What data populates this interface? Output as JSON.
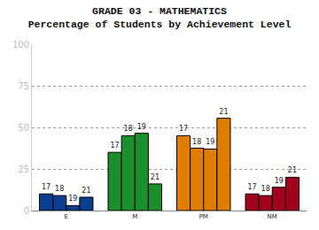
{
  "chart_data": {
    "type": "bar",
    "title": "GRADE 03 - MATHEMATICS",
    "subtitle": "Percentage of Students by Achievement Level",
    "categories": [
      "E",
      "M",
      "PM",
      "NM"
    ],
    "series": [
      {
        "name": "17",
        "values": [
          10,
          35,
          45,
          10
        ],
        "colors": [
          "#0b3e8e",
          "#1a8f2c",
          "#df7d00",
          "#a3001e"
        ]
      },
      {
        "name": "18",
        "values": [
          9,
          45,
          37.5,
          9
        ],
        "colors": [
          "#0b3e8e",
          "#1a8f2c",
          "#df7d00",
          "#a3001e"
        ]
      },
      {
        "name": "19",
        "values": [
          3,
          46.5,
          37,
          14
        ],
        "colors": [
          "#0b3e8e",
          "#1a8f2c",
          "#df7d00",
          "#a3001e"
        ]
      },
      {
        "name": "21",
        "values": [
          8,
          16,
          55.5,
          20
        ],
        "colors": [
          "#0b3e8e",
          "#1a8f2c",
          "#df7d00",
          "#a3001e"
        ]
      }
    ],
    "ylim": [
      0,
      100
    ],
    "yticks": [
      0,
      25,
      50,
      75,
      100
    ],
    "grid": true
  }
}
